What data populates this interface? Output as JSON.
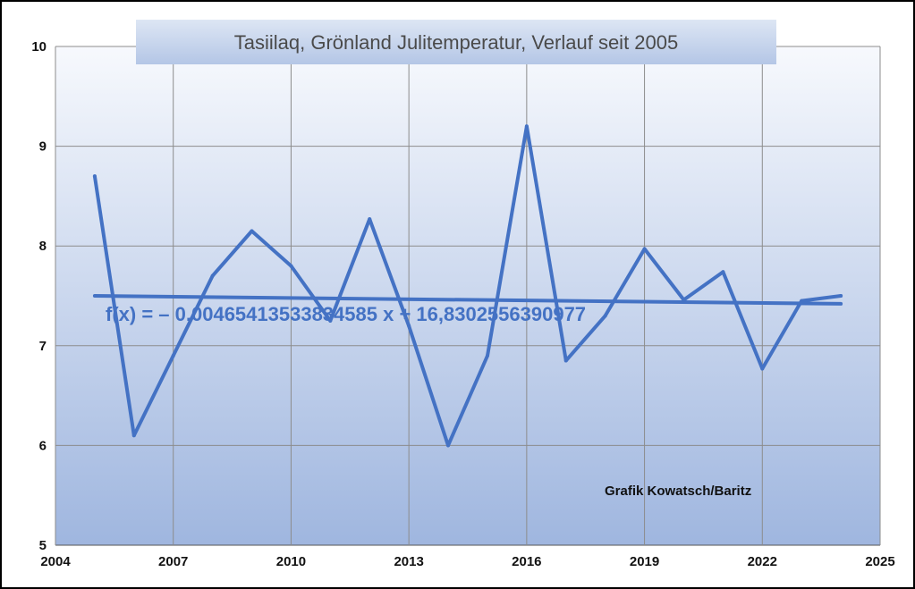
{
  "chart_data": {
    "type": "line",
    "title": "Tasiilaq, Grönland Julitemperatur, Verlauf seit 2005",
    "xlabel": "",
    "ylabel": "",
    "xlim": [
      2004,
      2025
    ],
    "ylim": [
      5,
      10
    ],
    "x_ticks": [
      2004,
      2007,
      2010,
      2013,
      2016,
      2019,
      2022,
      2025
    ],
    "y_ticks": [
      5,
      6,
      7,
      8,
      9,
      10
    ],
    "grid": true,
    "series": [
      {
        "x": [
          2005,
          2006,
          2007,
          2008,
          2009,
          2010,
          2011,
          2012,
          2013,
          2014,
          2015,
          2016,
          2017,
          2018,
          2019,
          2020,
          2021,
          2022,
          2023,
          2024
        ],
        "values": [
          8.7,
          6.1,
          6.9,
          7.7,
          8.15,
          7.8,
          7.25,
          8.27,
          7.2,
          6.0,
          6.9,
          9.2,
          6.85,
          7.3,
          7.97,
          7.46,
          7.74,
          6.77,
          7.45,
          7.5
        ],
        "color": "#4472C4"
      }
    ],
    "trendline": {
      "equation": "f(x) = – 0,00465413533834585 x + 16,8302556390977",
      "x_start": 2005,
      "y_start": 7.5,
      "x_end": 2024,
      "y_end": 7.42,
      "color": "#4472C4"
    },
    "annotations": [
      "Grafik Kowatsch/Baritz"
    ]
  }
}
